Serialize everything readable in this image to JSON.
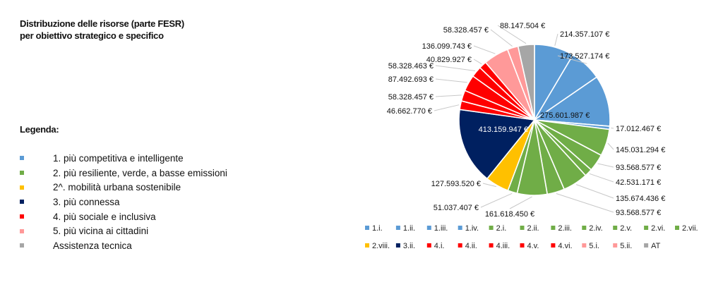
{
  "title_lines": [
    "Distribuzione delle risorse (parte FESR)",
    "per obiettivo strategico e specifico"
  ],
  "legend": {
    "heading": "Legenda:",
    "items": [
      {
        "label": "1. più competitiva e intelligente",
        "color": "#5b9bd5"
      },
      {
        "label": "2. più resiliente, verde, a basse emissioni",
        "color": "#70ad47"
      },
      {
        "label": "2^. mobilità urbana sostenibile",
        "color": "#ffc000"
      },
      {
        "label": "3. più connessa",
        "color": "#002060"
      },
      {
        "label": "4. più sociale e inclusiva",
        "color": "#ff0000"
      },
      {
        "label": "5. più vicina ai cittadini",
        "color": "#ff9999"
      },
      {
        "label": "Assistenza tecnica",
        "color": "#a6a6a6"
      }
    ]
  },
  "chart_data": {
    "type": "pie",
    "currency": "€",
    "slices": [
      {
        "category": "1.i.",
        "value": 214357107,
        "label": "214.357.107 €",
        "color": "#5b9bd5"
      },
      {
        "category": "1.ii.",
        "value": 173527174,
        "label": "173.527.174 €",
        "color": "#5b9bd5"
      },
      {
        "category": "1.iii.",
        "value": 275601987,
        "label": "275.601.987 €",
        "color": "#5b9bd5"
      },
      {
        "category": "1.iv.",
        "value": 17012467,
        "label": "17.012.467 €",
        "color": "#5b9bd5"
      },
      {
        "category": "2.i.",
        "value": 145031294,
        "label": "145.031.294 €",
        "color": "#70ad47"
      },
      {
        "category": "2.ii.",
        "value": 93568577,
        "label": "93.568.577 €",
        "color": "#70ad47"
      },
      {
        "category": "2.iii.",
        "value": 42531171,
        "label": "42.531.171 €",
        "color": "#70ad47"
      },
      {
        "category": "2.iv.",
        "value": 135674436,
        "label": "135.674.436 €",
        "color": "#70ad47"
      },
      {
        "category": "2.v.",
        "value": 93568577,
        "label": "93.568.577 €",
        "color": "#70ad47"
      },
      {
        "category": "2.vi.",
        "value": 161618450,
        "label": "161.618.450 €",
        "color": "#70ad47"
      },
      {
        "category": "2.vii.",
        "value": 51037407,
        "label": "51.037.407 €",
        "color": "#70ad47"
      },
      {
        "category": "2.viii.",
        "value": 127593520,
        "label": "127.593.520 €",
        "color": "#ffc000"
      },
      {
        "category": "3.ii.",
        "value": 413159947,
        "label": "413.159.947 €",
        "color": "#002060"
      },
      {
        "category": "4.i.",
        "value": 46662770,
        "label": "46.662.770 €",
        "color": "#ff0000"
      },
      {
        "category": "4.ii.",
        "value": 58328457,
        "label": "58.328.457 €",
        "color": "#ff0000"
      },
      {
        "category": "4.iii.",
        "value": 87492693,
        "label": "87.492.693 €",
        "color": "#ff0000"
      },
      {
        "category": "4.v.",
        "value": 58328463,
        "label": "58.328.463 €",
        "color": "#ff0000"
      },
      {
        "category": "4.vi.",
        "value": 40829927,
        "label": "40.829.927 €",
        "color": "#ff0000"
      },
      {
        "category": "5.i.",
        "value": 136099743,
        "label": "136.099.743 €",
        "color": "#ff9999"
      },
      {
        "category": "5.ii.",
        "value": 58328457,
        "label": "58.328.457 €",
        "color": "#ff9999"
      },
      {
        "category": "AT",
        "value": 88147504,
        "label": "88.147.504 €",
        "color": "#a6a6a6"
      }
    ]
  }
}
